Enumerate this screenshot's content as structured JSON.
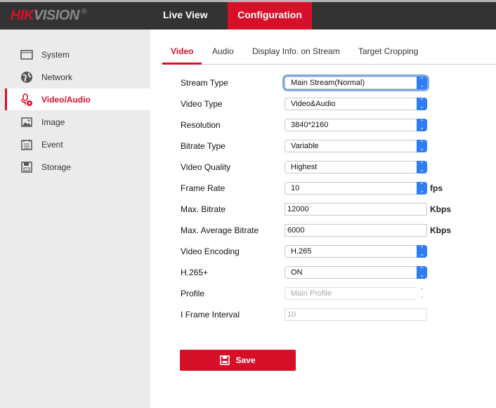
{
  "header": {
    "logo_main": "HIK",
    "logo_rest": "VISION",
    "logo_mark": "®",
    "nav": [
      "Live View",
      "Configuration"
    ],
    "active_nav": "Configuration"
  },
  "sidebar": {
    "items": [
      {
        "label": "System",
        "icon": "window-icon"
      },
      {
        "label": "Network",
        "icon": "globe-icon"
      },
      {
        "label": "Video/Audio",
        "icon": "microphone-play-icon",
        "active": true
      },
      {
        "label": "Image",
        "icon": "image-icon"
      },
      {
        "label": "Event",
        "icon": "list-icon"
      },
      {
        "label": "Storage",
        "icon": "save-icon"
      }
    ]
  },
  "tabs": [
    "Video",
    "Audio",
    "Display Info. on Stream",
    "Target Cropping"
  ],
  "form": {
    "rows": [
      {
        "label": "Stream Type",
        "value": "Main Stream(Normal)",
        "type": "select"
      },
      {
        "label": "Video Type",
        "value": "Video&Audio",
        "type": "select"
      },
      {
        "label": "Resolution",
        "value": "3840*2160",
        "type": "select"
      },
      {
        "label": "Bitrate Type",
        "value": "Variable",
        "type": "select"
      },
      {
        "label": "Video Quality",
        "value": "Highest",
        "type": "select"
      },
      {
        "label": "Frame Rate",
        "value": "10",
        "type": "select",
        "unit": "fps"
      },
      {
        "label": "Max. Bitrate",
        "value": "12000",
        "type": "text",
        "unit": "Kbps"
      },
      {
        "label": "Max. Average Bitrate",
        "value": "6000",
        "type": "text",
        "unit": "Kbps"
      },
      {
        "label": "Video Encoding",
        "value": "H.265",
        "type": "select"
      },
      {
        "label": "H.265+",
        "value": "ON",
        "type": "select"
      },
      {
        "label": "Profile",
        "value": "Main Profile",
        "type": "select",
        "disabled": true
      },
      {
        "label": "I Frame Interval",
        "value": "10",
        "type": "text",
        "disabled": true
      }
    ]
  },
  "save_label": "Save",
  "colors": {
    "brand": "#d7102a",
    "select_arrow": "#2e7cf6"
  }
}
